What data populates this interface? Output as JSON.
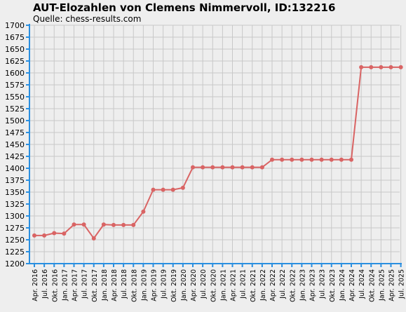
{
  "chart_data": {
    "type": "line",
    "title": "AUT-Elozahlen von Clemens Nimmervoll, ID:132216",
    "subtitle": "Quelle: chess-results.com",
    "xlabel": "",
    "ylabel": "",
    "ylim": [
      1200,
      1700
    ],
    "yticks": [
      1200,
      1225,
      1250,
      1275,
      1300,
      1325,
      1350,
      1375,
      1400,
      1425,
      1450,
      1475,
      1500,
      1525,
      1550,
      1575,
      1600,
      1625,
      1650,
      1675,
      1700
    ],
    "grid": true,
    "legend": "none",
    "line_color": "#d96464",
    "axis_color": "#2a8fe0",
    "categories": [
      "Apr. 2016",
      "Jul. 2016",
      "Okt. 2016",
      "Jan. 2017",
      "Apr. 2017",
      "Jul. 2017",
      "Okt. 2017",
      "Jan. 2018",
      "Apr. 2018",
      "Jul. 2018",
      "Okt. 2018",
      "Jan. 2019",
      "Apr. 2019",
      "Jul. 2019",
      "Okt. 2019",
      "Jan. 2020",
      "Apr. 2020",
      "Jul. 2020",
      "Okt. 2020",
      "Jan. 2021",
      "Apr. 2021",
      "Jul. 2021",
      "Okt. 2021",
      "Jan. 2022",
      "Apr. 2022",
      "Jul. 2022",
      "Okt. 2022",
      "Jan. 2023",
      "Apr. 2023",
      "Jul. 2023",
      "Okt. 2023",
      "Jan. 2024",
      "Apr. 2024",
      "Jul. 2024",
      "Okt. 2024",
      "Jan. 2025",
      "Apr. 2025",
      "Jul. 2025"
    ],
    "series": [
      {
        "values": [
          1259,
          1259,
          1264,
          1263,
          1282,
          1282,
          1253,
          1282,
          1281,
          1281,
          1281,
          1309,
          1355,
          1355,
          1355,
          1359,
          1402,
          1402,
          1402,
          1402,
          1402,
          1402,
          1402,
          1402,
          1418,
          1418,
          1418,
          1418,
          1418,
          1418,
          1418,
          1418,
          1418,
          1612,
          1612,
          1612,
          1612,
          1612
        ]
      }
    ]
  }
}
